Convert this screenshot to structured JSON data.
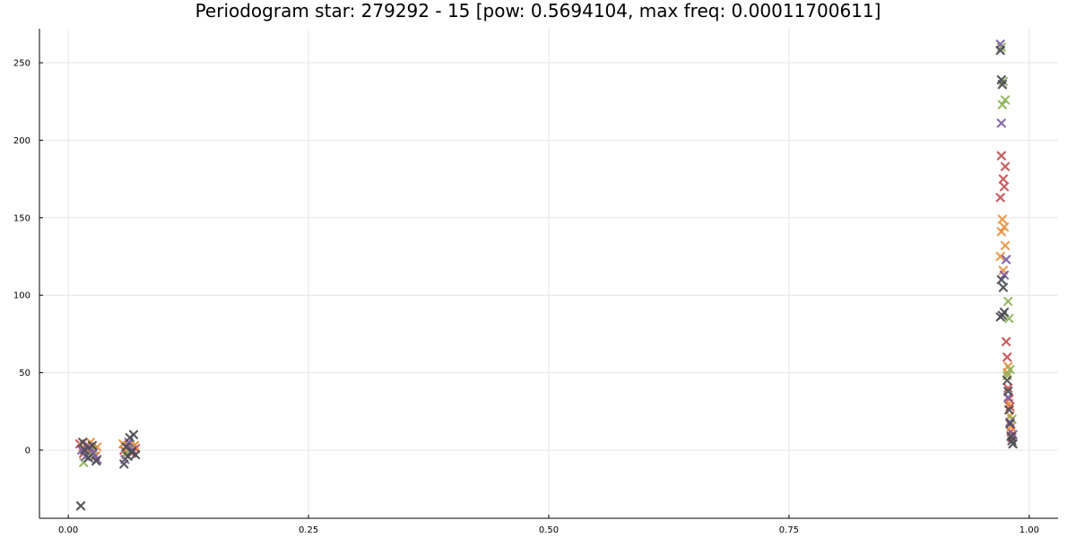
{
  "chart_data": {
    "type": "scatter",
    "title": "Periodogram star: 279292 - 15 [pow: 0.5694104, max freq: 0.00011700611]",
    "xlabel": "",
    "ylabel": "",
    "xlim": [
      -0.03,
      1.03
    ],
    "ylim": [
      -44,
      272
    ],
    "xticks": [
      0.0,
      0.25,
      0.5,
      0.75,
      1.0
    ],
    "xtick_labels": [
      "0.00",
      "0.25",
      "0.50",
      "0.75",
      "1.00"
    ],
    "yticks": [
      0,
      50,
      100,
      150,
      200,
      250
    ],
    "ytick_labels": [
      "0",
      "50",
      "100",
      "150",
      "200",
      "250"
    ],
    "grid": true,
    "legend": false,
    "marker": "x",
    "series": [
      {
        "color": "#c44e52",
        "points": [
          [
            0.012,
            4
          ],
          [
            0.016,
            -2
          ],
          [
            0.02,
            3
          ],
          [
            0.024,
            1
          ],
          [
            0.028,
            -4
          ],
          [
            0.058,
            0
          ],
          [
            0.062,
            3
          ],
          [
            0.066,
            -2
          ],
          [
            0.07,
            1
          ],
          [
            0.971,
            190
          ],
          [
            0.973,
            175
          ],
          [
            0.975,
            183
          ],
          [
            0.974,
            170
          ],
          [
            0.97,
            163
          ],
          [
            0.976,
            70
          ],
          [
            0.977,
            60
          ],
          [
            0.978,
            40
          ],
          [
            0.979,
            33
          ],
          [
            0.98,
            28
          ],
          [
            0.981,
            12
          ],
          [
            0.982,
            8
          ]
        ]
      },
      {
        "color": "#e8913e",
        "points": [
          [
            0.015,
            2
          ],
          [
            0.019,
            -1
          ],
          [
            0.023,
            5
          ],
          [
            0.027,
            0
          ],
          [
            0.03,
            2
          ],
          [
            0.057,
            4
          ],
          [
            0.061,
            -1
          ],
          [
            0.065,
            2
          ],
          [
            0.069,
            3
          ],
          [
            0.972,
            149
          ],
          [
            0.971,
            141
          ],
          [
            0.974,
            144
          ],
          [
            0.975,
            132
          ],
          [
            0.97,
            125
          ],
          [
            0.973,
            116
          ],
          [
            0.978,
            54
          ],
          [
            0.977,
            50
          ],
          [
            0.979,
            30
          ],
          [
            0.98,
            22
          ],
          [
            0.981,
            15
          ]
        ]
      },
      {
        "color": "#8eb35a",
        "points": [
          [
            0.016,
            -8
          ],
          [
            0.021,
            -3
          ],
          [
            0.025,
            0
          ],
          [
            0.06,
            -3
          ],
          [
            0.064,
            1
          ],
          [
            0.971,
            260
          ],
          [
            0.973,
            238
          ],
          [
            0.972,
            223
          ],
          [
            0.975,
            226
          ],
          [
            0.978,
            96
          ],
          [
            0.979,
            85
          ],
          [
            0.98,
            52
          ],
          [
            0.977,
            48
          ],
          [
            0.982,
            20
          ]
        ]
      },
      {
        "color": "#7b5ea7",
        "points": [
          [
            0.014,
            0
          ],
          [
            0.018,
            -4
          ],
          [
            0.022,
            2
          ],
          [
            0.026,
            -2
          ],
          [
            0.03,
            -6
          ],
          [
            0.059,
            -6
          ],
          [
            0.063,
            5
          ],
          [
            0.067,
            0
          ],
          [
            0.97,
            262
          ],
          [
            0.971,
            211
          ],
          [
            0.976,
            123
          ],
          [
            0.974,
            113
          ],
          [
            0.978,
            34
          ],
          [
            0.98,
            18
          ],
          [
            0.983,
            10
          ]
        ]
      },
      {
        "color": "#4a4a52",
        "points": [
          [
            0.013,
            -36
          ],
          [
            0.015,
            5
          ],
          [
            0.017,
            0
          ],
          [
            0.021,
            -5
          ],
          [
            0.025,
            3
          ],
          [
            0.029,
            -7
          ],
          [
            0.058,
            -9
          ],
          [
            0.06,
            2
          ],
          [
            0.062,
            -4
          ],
          [
            0.064,
            8
          ],
          [
            0.066,
            -1
          ],
          [
            0.068,
            10
          ],
          [
            0.07,
            -3
          ],
          [
            0.97,
            258
          ],
          [
            0.971,
            239
          ],
          [
            0.972,
            236
          ],
          [
            0.973,
            105
          ],
          [
            0.971,
            110
          ],
          [
            0.972,
            87
          ],
          [
            0.974,
            89
          ],
          [
            0.97,
            86
          ],
          [
            0.977,
            45
          ],
          [
            0.978,
            38
          ],
          [
            0.979,
            26
          ],
          [
            0.98,
            17
          ],
          [
            0.981,
            9
          ],
          [
            0.982,
            6
          ],
          [
            0.983,
            4
          ]
        ]
      }
    ]
  }
}
